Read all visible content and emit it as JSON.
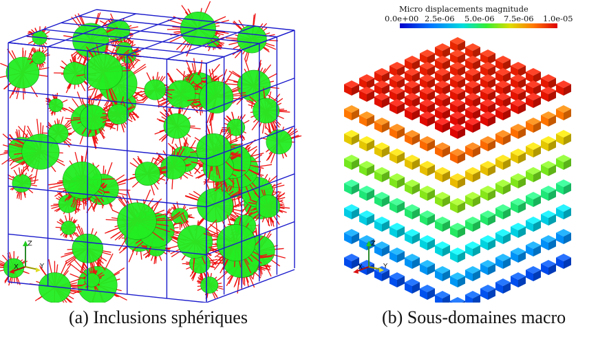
{
  "figure": {
    "captions": {
      "a": "(a) Inclusions sphériques",
      "b": "(b) Sous-domaines macro"
    },
    "colorbar": {
      "title": "Micro displacements magnitude",
      "ticks": [
        "0.0e+00",
        "2.5e-06",
        "5.0e-06",
        "7.5e-06",
        "1.0e-05"
      ]
    },
    "axes_labels": {
      "z": "Z",
      "x": "X",
      "y": "Y"
    },
    "colors": {
      "grid": "#1a1acc",
      "inclusion_fill": "#22ee22",
      "mesh_edges": "#ee1111"
    }
  }
}
